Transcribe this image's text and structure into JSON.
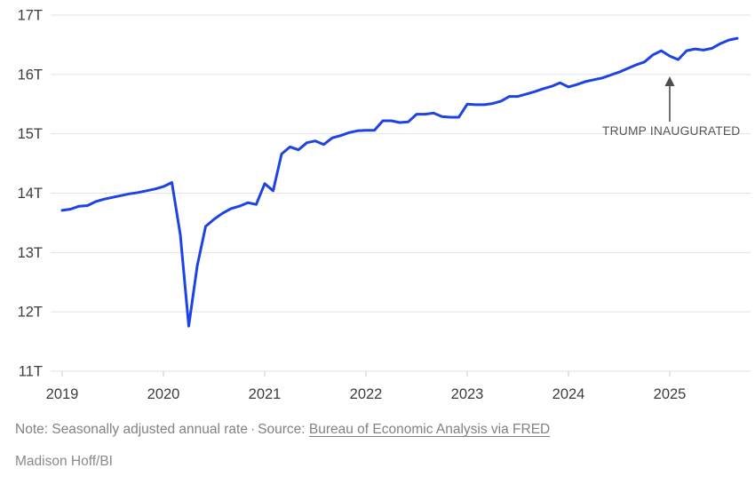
{
  "chart_data": {
    "type": "line",
    "title": "",
    "unit": "trillions of US dollars",
    "frequency": "monthly",
    "x_start": "2019-01",
    "x_end": "2025-09",
    "grid": "horizontal-only",
    "legend": "none",
    "ylim": [
      11,
      17
    ],
    "y_ticks": [
      {
        "value": 11,
        "label": "11T"
      },
      {
        "value": 12,
        "label": "12T"
      },
      {
        "value": 13,
        "label": "13T"
      },
      {
        "value": 14,
        "label": "14T"
      },
      {
        "value": 15,
        "label": "15T"
      },
      {
        "value": 16,
        "label": "16T"
      },
      {
        "value": 17,
        "label": "17T"
      }
    ],
    "x_ticks": [
      {
        "label": "2019",
        "month_index": 0
      },
      {
        "label": "2020",
        "month_index": 12
      },
      {
        "label": "2021",
        "month_index": 24
      },
      {
        "label": "2022",
        "month_index": 36
      },
      {
        "label": "2023",
        "month_index": 48
      },
      {
        "label": "2024",
        "month_index": 60
      },
      {
        "label": "2025",
        "month_index": 72
      }
    ],
    "series": [
      {
        "name": "Seasonally adjusted annual rate",
        "color": "#1d43e6",
        "values": [
          13.71,
          13.73,
          13.78,
          13.79,
          13.86,
          13.9,
          13.93,
          13.96,
          13.99,
          14.01,
          14.04,
          14.07,
          14.11,
          14.18,
          13.3,
          11.76,
          12.77,
          13.44,
          13.56,
          13.66,
          13.74,
          13.78,
          13.84,
          13.81,
          14.16,
          14.04,
          14.66,
          14.78,
          14.73,
          14.85,
          14.88,
          14.82,
          14.93,
          14.97,
          15.02,
          15.05,
          15.06,
          15.06,
          15.22,
          15.22,
          15.19,
          15.2,
          15.33,
          15.33,
          15.35,
          15.29,
          15.28,
          15.28,
          15.5,
          15.49,
          15.49,
          15.51,
          15.55,
          15.63,
          15.63,
          15.67,
          15.71,
          15.76,
          15.8,
          15.86,
          15.79,
          15.83,
          15.88,
          15.91,
          15.94,
          15.99,
          16.04,
          16.1,
          16.16,
          16.21,
          16.33,
          16.4,
          16.31,
          16.25,
          16.4,
          16.43,
          16.41,
          16.44,
          16.52,
          16.58,
          16.61
        ]
      }
    ],
    "annotation": {
      "label": "TRUMP INAUGURATED",
      "month": "2025-01",
      "month_index": 72,
      "arrow_direction": "up"
    }
  },
  "footer": {
    "note": "Note: Seasonally adjusted annual rate",
    "separator": "·",
    "source_label": "Source:",
    "source_link": "Bureau of Economic Analysis via FRED",
    "byline": "Madison Hoff/BI"
  },
  "colors": {
    "line": "#1d43e6",
    "gridline": "#e2e2e2",
    "axis_text": "#3c3c3c",
    "note_text": "#828282",
    "annotation_text": "#555555",
    "arrow": "#4d4d4d",
    "background": "#ffffff"
  }
}
